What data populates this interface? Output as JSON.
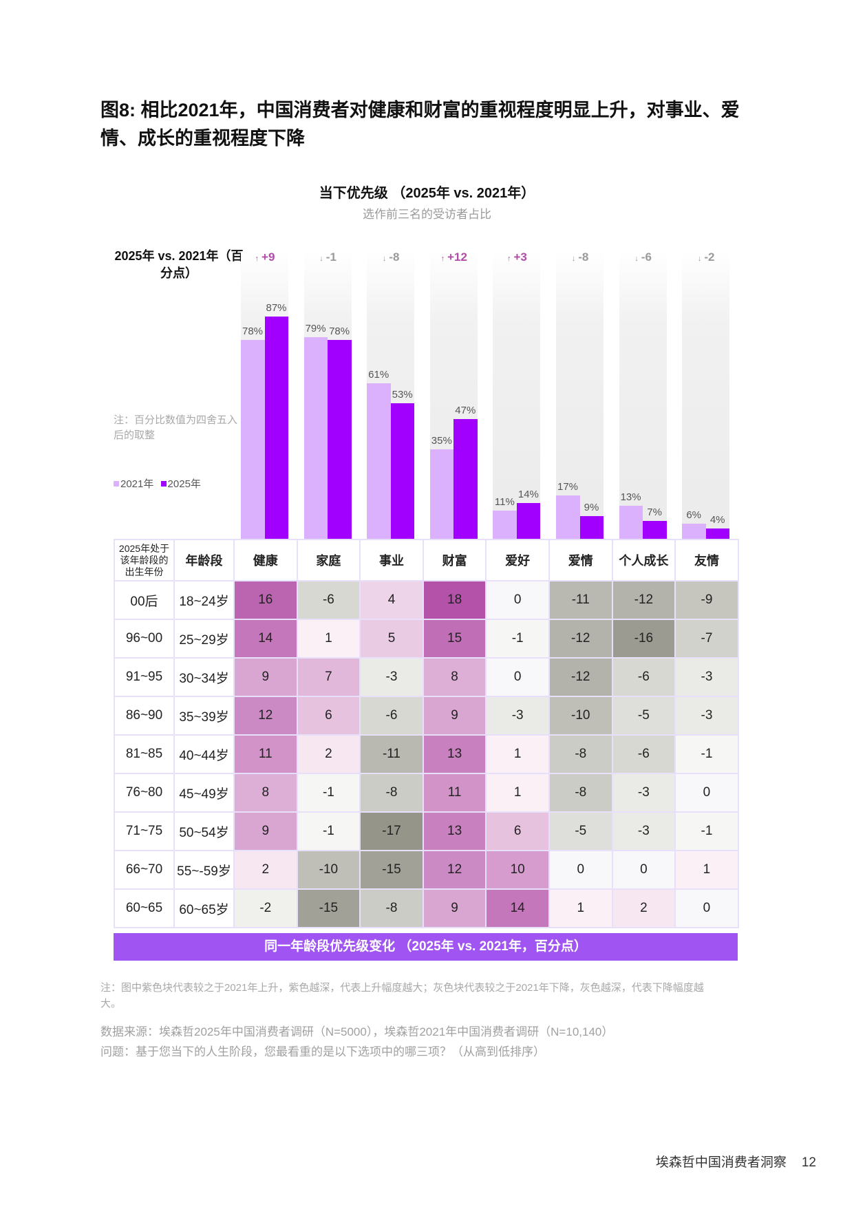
{
  "title": "图8: 相比2021年，中国消费者对健康和财富的重视程度明显上升，对事业、爱情、成长的重视程度下降",
  "chart_data": [
    {
      "type": "bar",
      "title": "当下优先级 （2025年 vs. 2021年）",
      "subtitle": "选作前三名的受访者占比",
      "delta_label": "2025年 vs. 2021年（百分点）",
      "note": "注：百分比数值为四舍五入后的取整",
      "categories": [
        "健康",
        "家庭",
        "事业",
        "财富",
        "爱好",
        "爱情",
        "个人成长",
        "友情"
      ],
      "series": [
        {
          "name": "2021年",
          "color": "#dbb0fc",
          "values": [
            78,
            79,
            61,
            35,
            11,
            17,
            13,
            6
          ]
        },
        {
          "name": "2025年",
          "color": "#a100ff",
          "values": [
            87,
            78,
            53,
            47,
            14,
            9,
            7,
            4
          ]
        }
      ],
      "deltas": [
        "+9",
        "-1",
        "-8",
        "+12",
        "+3",
        "-8",
        "-6",
        "-2"
      ],
      "value_suffix": "%",
      "ylim": [
        0,
        100
      ],
      "legend": "left",
      "colors": {
        "up": "#b34aa8",
        "down": "#9a9a9a"
      }
    },
    {
      "type": "heatmap",
      "title": "同一年龄段优先级变化 （2025年 vs. 2021年，百分点）",
      "header": [
        "2025年处于该年龄段的出生年份",
        "年龄段",
        "健康",
        "家庭",
        "事业",
        "财富",
        "爱好",
        "爱情",
        "个人成长",
        "友情"
      ],
      "rows": [
        {
          "birth": "00后",
          "age": "18~24岁",
          "values": [
            16,
            -6,
            4,
            18,
            0,
            -11,
            -12,
            -9
          ]
        },
        {
          "birth": "96~00",
          "age": "25~29岁",
          "values": [
            14,
            1,
            5,
            15,
            -1,
            -12,
            -16,
            -7
          ]
        },
        {
          "birth": "91~95",
          "age": "30~34岁",
          "values": [
            9,
            7,
            -3,
            8,
            0,
            -12,
            -6,
            -3
          ]
        },
        {
          "birth": "86~90",
          "age": "35~39岁",
          "values": [
            12,
            6,
            -6,
            9,
            -3,
            -10,
            -5,
            -3
          ]
        },
        {
          "birth": "81~85",
          "age": "40~44岁",
          "values": [
            11,
            2,
            -11,
            13,
            1,
            -8,
            -6,
            -1
          ]
        },
        {
          "birth": "76~80",
          "age": "45~49岁",
          "values": [
            8,
            -1,
            -8,
            11,
            1,
            -8,
            -3,
            0
          ]
        },
        {
          "birth": "71~75",
          "age": "50~54岁",
          "values": [
            9,
            -1,
            -17,
            13,
            6,
            -5,
            -3,
            -1
          ]
        },
        {
          "birth": "66~70",
          "age": "55~-59岁",
          "values": [
            2,
            -10,
            -15,
            12,
            10,
            0,
            0,
            1
          ]
        },
        {
          "birth": "60~65",
          "age": "60~65岁",
          "values": [
            -2,
            -15,
            -8,
            9,
            14,
            1,
            2,
            0
          ]
        }
      ],
      "colors": {
        "positive_max": "#b352a8",
        "negative_max": "#95958a",
        "neutral": "#f8f7fa"
      }
    }
  ],
  "footnote": "注：图中紫色块代表较之于2021年上升，紫色越深，代表上升幅度越大；灰色块代表较之于2021年下降，灰色越深，代表下降幅度越大。",
  "source": "数据来源：埃森哲2025年中国消费者调研（N=5000），埃森哲2021年中国消费者调研（N=10,140）",
  "question": "问题：基于您当下的人生阶段，您最看重的是以下选项中的哪三项？（从高到低排序）",
  "footer": {
    "publication": "埃森哲中国消费者洞察",
    "page": "12"
  }
}
